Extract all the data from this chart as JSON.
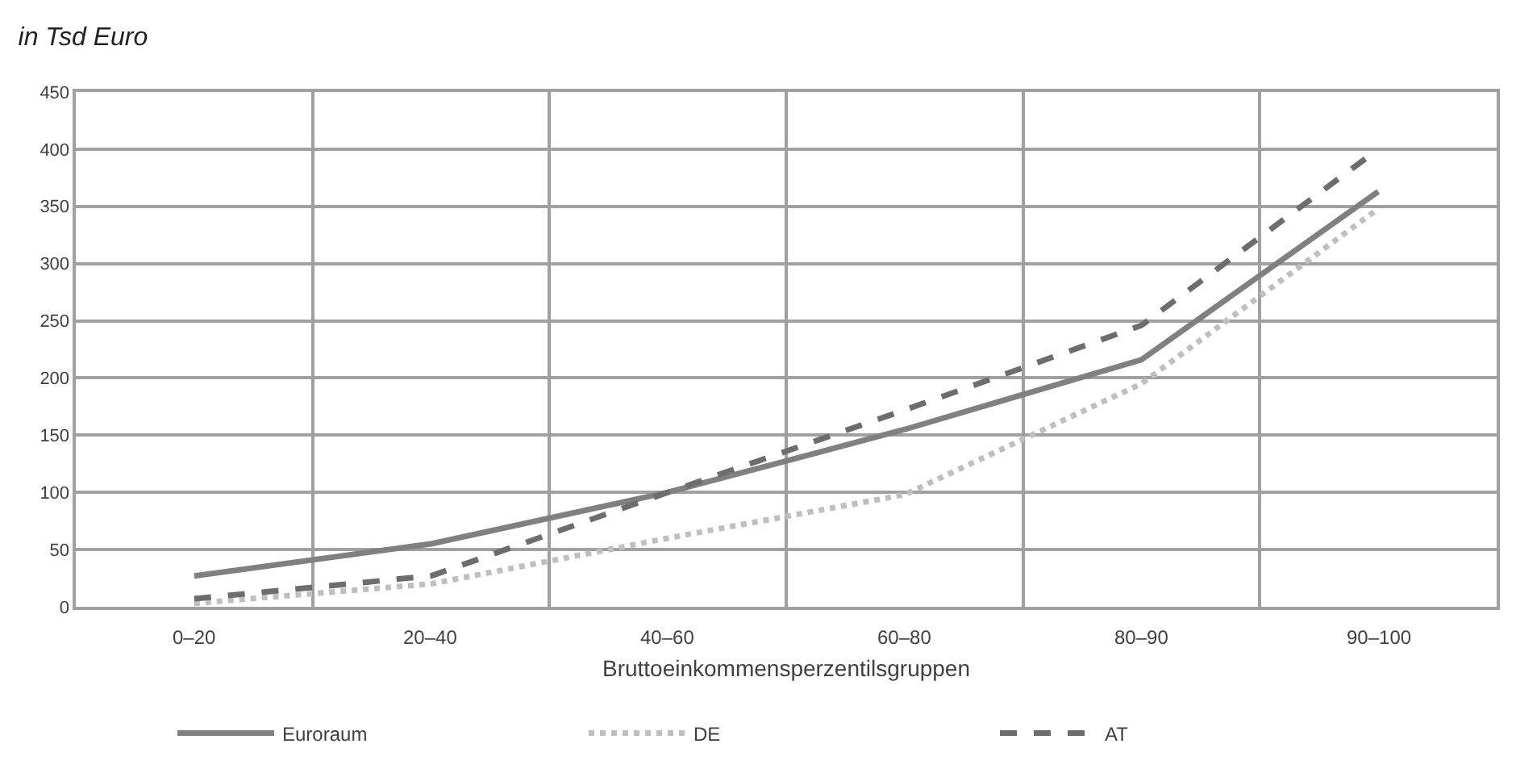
{
  "chart_data": {
    "type": "line",
    "title": "in Tsd Euro",
    "xlabel": "Bruttoeinkommensperzentilsgruppen",
    "categories": [
      "0–20",
      "20–40",
      "40–60",
      "60–80",
      "80–90",
      "90–100"
    ],
    "series": [
      {
        "name": "Euroraum",
        "color": "#808080",
        "line_style": "solid",
        "values": [
          27,
          55,
          100,
          155,
          216,
          363
        ]
      },
      {
        "name": "DE",
        "color": "#bfbfbf",
        "line_style": "dotted",
        "values": [
          3,
          20,
          60,
          98,
          195,
          348
        ]
      },
      {
        "name": "AT",
        "color": "#6d6d6d",
        "line_style": "dashed",
        "values": [
          7,
          27,
          100,
          172,
          246,
          400
        ]
      }
    ],
    "ylim": [
      0,
      450
    ],
    "yticks": [
      0,
      50,
      100,
      150,
      200,
      250,
      300,
      350,
      400,
      450
    ],
    "grid": true,
    "legend": "bottom",
    "marker": "none"
  }
}
